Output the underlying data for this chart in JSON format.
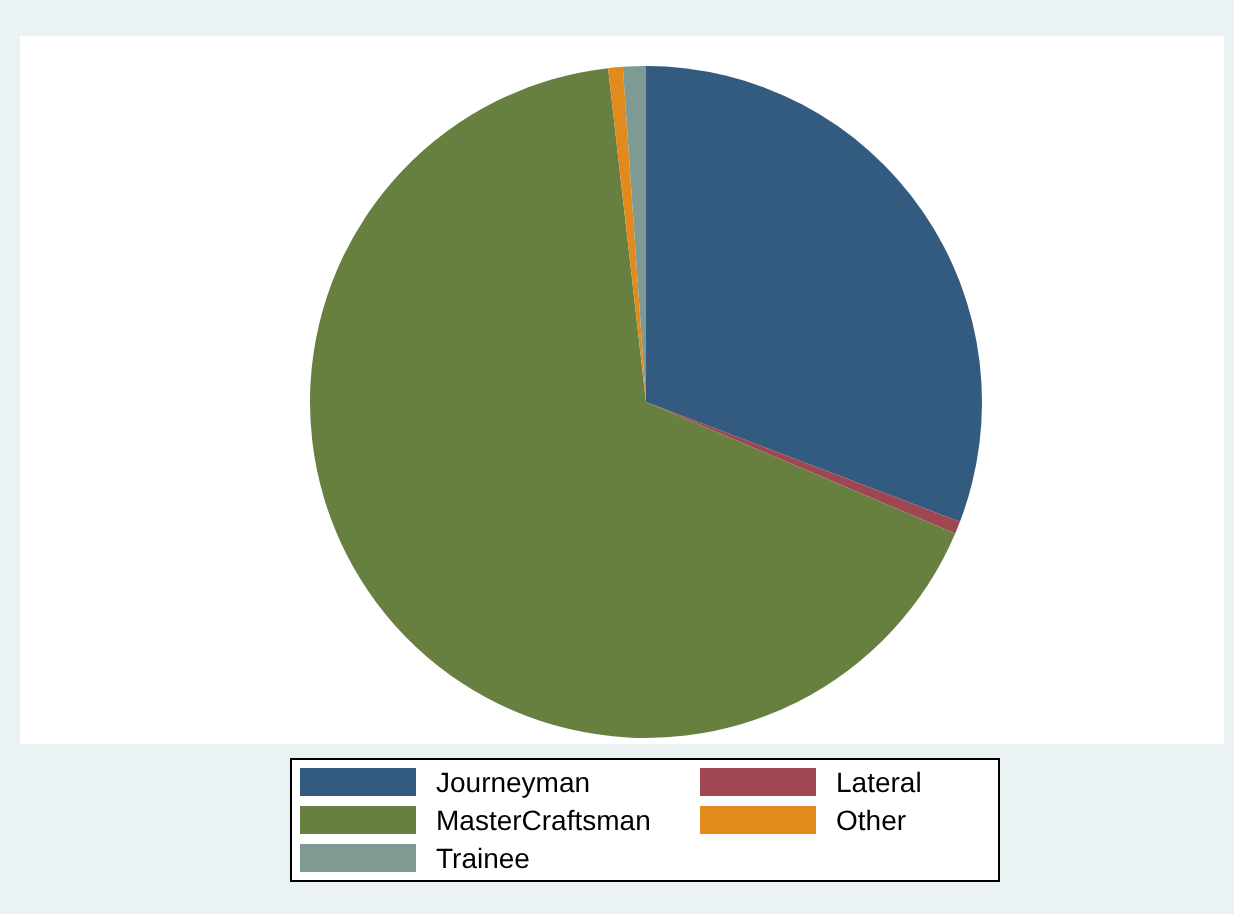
{
  "chart_data": {
    "type": "pie",
    "categories": [
      "Journeyman",
      "Lateral",
      "MasterCraftsman",
      "Other",
      "Trainee"
    ],
    "values": [
      30.8,
      0.6,
      66.8,
      0.7,
      1.1
    ],
    "colors": [
      "#335a7f",
      "#9e4651",
      "#677f3f",
      "#e28a1b",
      "#7f9a92"
    ],
    "legend": "bottom"
  }
}
